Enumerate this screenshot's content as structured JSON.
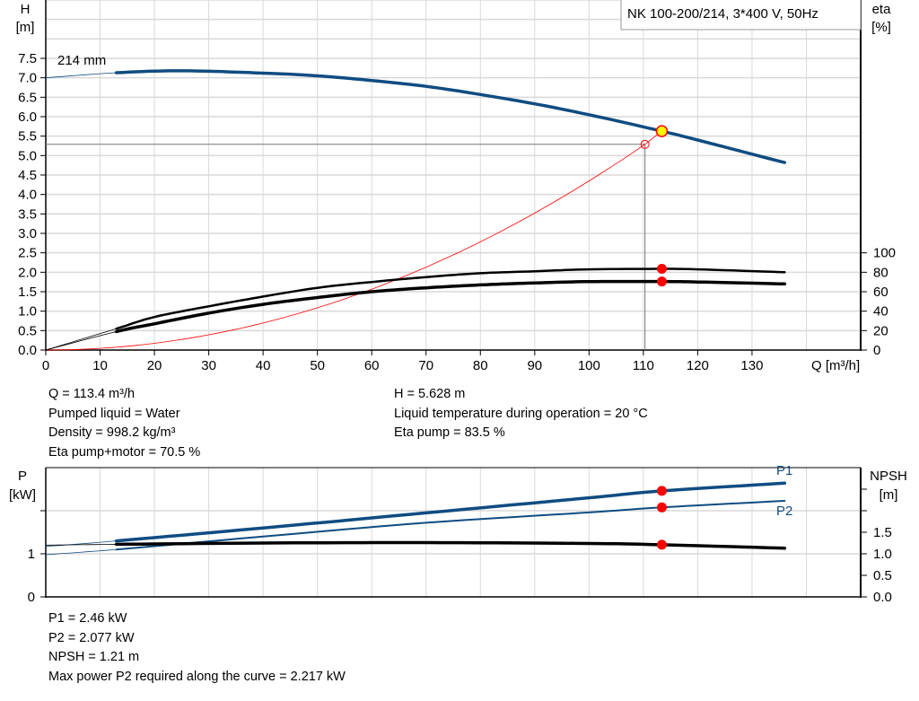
{
  "chart_data": [
    {
      "type": "line",
      "title": "NK 100-200/214, 3*400 V, 50Hz",
      "xlabel": "Q [m³/h]",
      "ylabel": "H\n[m]",
      "ylabel_right": "eta\n[%]",
      "xlim": [
        0,
        150
      ],
      "ylim": [
        0,
        9
      ],
      "ylim_right": [
        0,
        100
      ],
      "grid": true,
      "x_ticks": [
        0,
        10,
        20,
        30,
        40,
        50,
        60,
        70,
        80,
        90,
        100,
        110,
        120,
        130
      ],
      "y_ticks": [
        "0.0",
        "0.5",
        "1.0",
        "1.5",
        "2.0",
        "2.5",
        "3.0",
        "3.5",
        "4.0",
        "4.5",
        "5.0",
        "5.5",
        "6.0",
        "6.5",
        "7.0",
        "7.5"
      ],
      "y_right_ticks": [
        0,
        20,
        40,
        60,
        80,
        100
      ],
      "curve_label": "214 mm",
      "series": [
        {
          "key": "H",
          "axis": "left",
          "color": "#0f4c81",
          "x": [
            0,
            13,
            25,
            40,
            50,
            60,
            70,
            80,
            90,
            100,
            113.4,
            120,
            136
          ],
          "y": [
            7.0,
            7.13,
            7.18,
            7.12,
            7.05,
            6.93,
            6.78,
            6.57,
            6.33,
            6.05,
            5.628,
            5.4,
            4.82
          ]
        },
        {
          "key": "eta_pump",
          "axis": "right",
          "color": "#000000",
          "x": [
            0,
            13,
            20,
            30,
            40,
            50,
            60,
            70,
            80,
            90,
            100,
            113.4,
            120,
            136
          ],
          "y": [
            0,
            22,
            34,
            45,
            55,
            64,
            70,
            75,
            79,
            81,
            83,
            83.5,
            83,
            80
          ]
        },
        {
          "key": "eta_pump_motor",
          "axis": "right",
          "color": "#000000",
          "x": [
            0,
            13,
            20,
            30,
            40,
            50,
            60,
            70,
            80,
            90,
            100,
            113.4,
            120,
            136
          ],
          "y": [
            0,
            19,
            27,
            38,
            47,
            54,
            60,
            64,
            67,
            69,
            70.4,
            70.5,
            70,
            68
          ]
        },
        {
          "key": "system",
          "axis": "left",
          "color": "#ff0000",
          "type": "quadratic",
          "x_end": 110.3,
          "y_end": 5.29
        }
      ],
      "duty_point": {
        "Q": 113.4,
        "H": 5.628,
        "eta_pump": 83.5,
        "eta_pump_motor": 70.5
      },
      "requested_point": {
        "Q": 110.3,
        "H": 5.29
      },
      "colors": {
        "head": "#0f4c81",
        "marker": "#ff0000",
        "duty_fill": "#ffff00",
        "grid": "#d9d9d9"
      }
    },
    {
      "type": "line",
      "ylabel": "P\n[kW]",
      "ylabel_right": "NPSH\n[m]",
      "xlim": [
        0,
        150
      ],
      "ylim": [
        0,
        3
      ],
      "ylim_right": [
        0,
        3
      ],
      "grid": true,
      "y_ticks": [
        "0",
        "1"
      ],
      "y_right_ticks": [
        "0.0",
        "0.5",
        "1.0",
        "1.5"
      ],
      "series": [
        {
          "name": "P1",
          "axis": "left",
          "color": "#0f4c81",
          "x": [
            0,
            13,
            40,
            70,
            100,
            113.4,
            136
          ],
          "y": [
            1.17,
            1.3,
            1.6,
            1.95,
            2.3,
            2.46,
            2.64
          ]
        },
        {
          "name": "P2",
          "axis": "left",
          "color": "#0f4c81",
          "x": [
            0,
            13,
            40,
            70,
            100,
            113.4,
            136
          ],
          "y": [
            0.98,
            1.1,
            1.4,
            1.72,
            1.96,
            2.077,
            2.23
          ]
        },
        {
          "key": "NPSH",
          "axis": "right",
          "color": "#000000",
          "x": [
            0,
            13,
            40,
            70,
            100,
            113.4,
            136
          ],
          "y": [
            1.2,
            1.22,
            1.25,
            1.26,
            1.24,
            1.21,
            1.13
          ]
        }
      ],
      "duty_point": {
        "Q": 113.4,
        "P1": 2.46,
        "P2": 2.077,
        "NPSH": 1.21
      }
    }
  ],
  "info1": {
    "left": [
      "Q = 113.4 m³/h",
      "Pumped liquid = Water",
      "Density = 998.2 kg/m³",
      "Eta pump+motor = 70.5 %"
    ],
    "right": [
      "H = 5.628 m",
      "Liquid temperature during operation = 20 °C",
      "Eta pump = 83.5 %"
    ]
  },
  "info2": [
    "P1 = 2.46 kW",
    "P2 = 2.077 kW",
    "NPSH = 1.21 m",
    "Max power P2 required along the curve = 2.217 kW"
  ]
}
